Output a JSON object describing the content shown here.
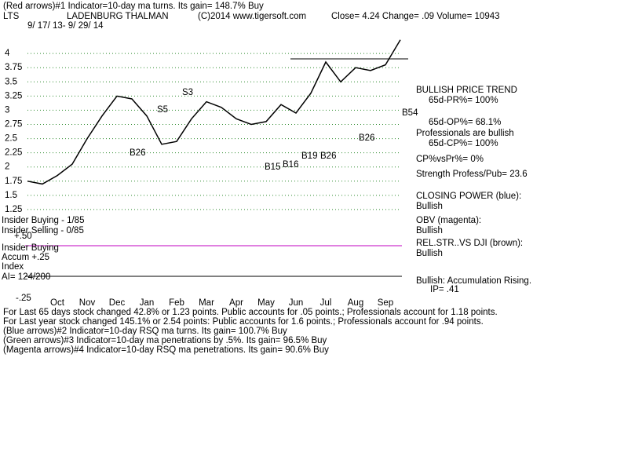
{
  "chart_data": {
    "type": "line",
    "title": "(Red arrows)#1 Indicator=10-day ma turns.  Its gain= 148.7% Buy",
    "header": [
      "LTS",
      "LADENBURG THALMAN",
      "(C)2014 www.tigersoft.com",
      "Close=  4.24  Change= .09 Volume= 10943"
    ],
    "subtitle": "9/ 17/ 13-  9/ 29/ 14",
    "categories": [
      null,
      null,
      "Oct",
      null,
      "Nov",
      null,
      "Dec",
      null,
      "Jan",
      null,
      "Feb",
      null,
      "Mar",
      null,
      "Apr",
      null,
      "May",
      null,
      "Jun",
      null,
      "Jul",
      null,
      "Aug",
      null,
      "Sep",
      null
    ],
    "series": [
      {
        "name": "LTS",
        "color": "#000000",
        "values": [
          1.75,
          1.7,
          1.85,
          2.05,
          2.5,
          2.9,
          3.25,
          3.2,
          2.9,
          2.4,
          2.45,
          2.85,
          3.15,
          3.05,
          2.85,
          2.75,
          2.8,
          3.1,
          2.95,
          3.3,
          3.85,
          3.5,
          3.75,
          3.7,
          3.8,
          4.24
        ]
      }
    ],
    "ylim": [
      1.0,
      4.5
    ],
    "yticks": [
      1.25,
      1.5,
      1.75,
      2,
      2.25,
      2.5,
      2.75,
      3,
      3.25,
      3.5,
      3.75,
      4
    ],
    "grid": true,
    "grid_color": "#2e8b2e",
    "annotations": [
      "B26",
      "S5",
      "S3",
      "B15",
      "B16",
      "B19",
      "B26",
      "B26",
      "B54"
    ],
    "side_panel": [
      "BULLISH PRICE TREND",
      "65d-PR%= 100%",
      "65d-OP%= 68.1%",
      "Professionals are bullish",
      "65d-CP%= 100%",
      "CP%vsPr%=  0%",
      "Strength Profess/Pub= 23.6",
      "CLOSING POWER (blue):",
      "Bullish",
      "OBV (magenta):",
      "Bullish",
      "REL.STR..VS DJI (brown):",
      "Bullish",
      "Bullish: Accumulation Rising.",
      "IP=  .41"
    ],
    "indicator_labels": [
      "Insider Buying - 1/85",
      "Insider Selling - 0/85",
      "+.50",
      "Insider Buying",
      "Accum  +.25",
      "Index",
      "AI= 124/200",
      "-.25"
    ],
    "footer": [
      "For Last 65 days stock changed  42.8% or  1.23 points.  Public accounts for  .05 points.;  Professionals account for  1.18 points.",
      "For Last year stock changed  145.1% or  2.54 points:  Public accounts for  1.6 points.;  Professionals account for  .94 points.",
      "(Blue arrows)#2 Indicator=10-day RSQ ma turns.  Its gain= 100.7% Buy",
      "(Green arrows)#3 Indicator=10-day ma penetrations by .5%.  Its gain= 96.5% Buy",
      "(Magenta arrows)#4 Indicator=10-day RSQ ma penetrations.  Its gain= 90.6% Buy"
    ]
  }
}
